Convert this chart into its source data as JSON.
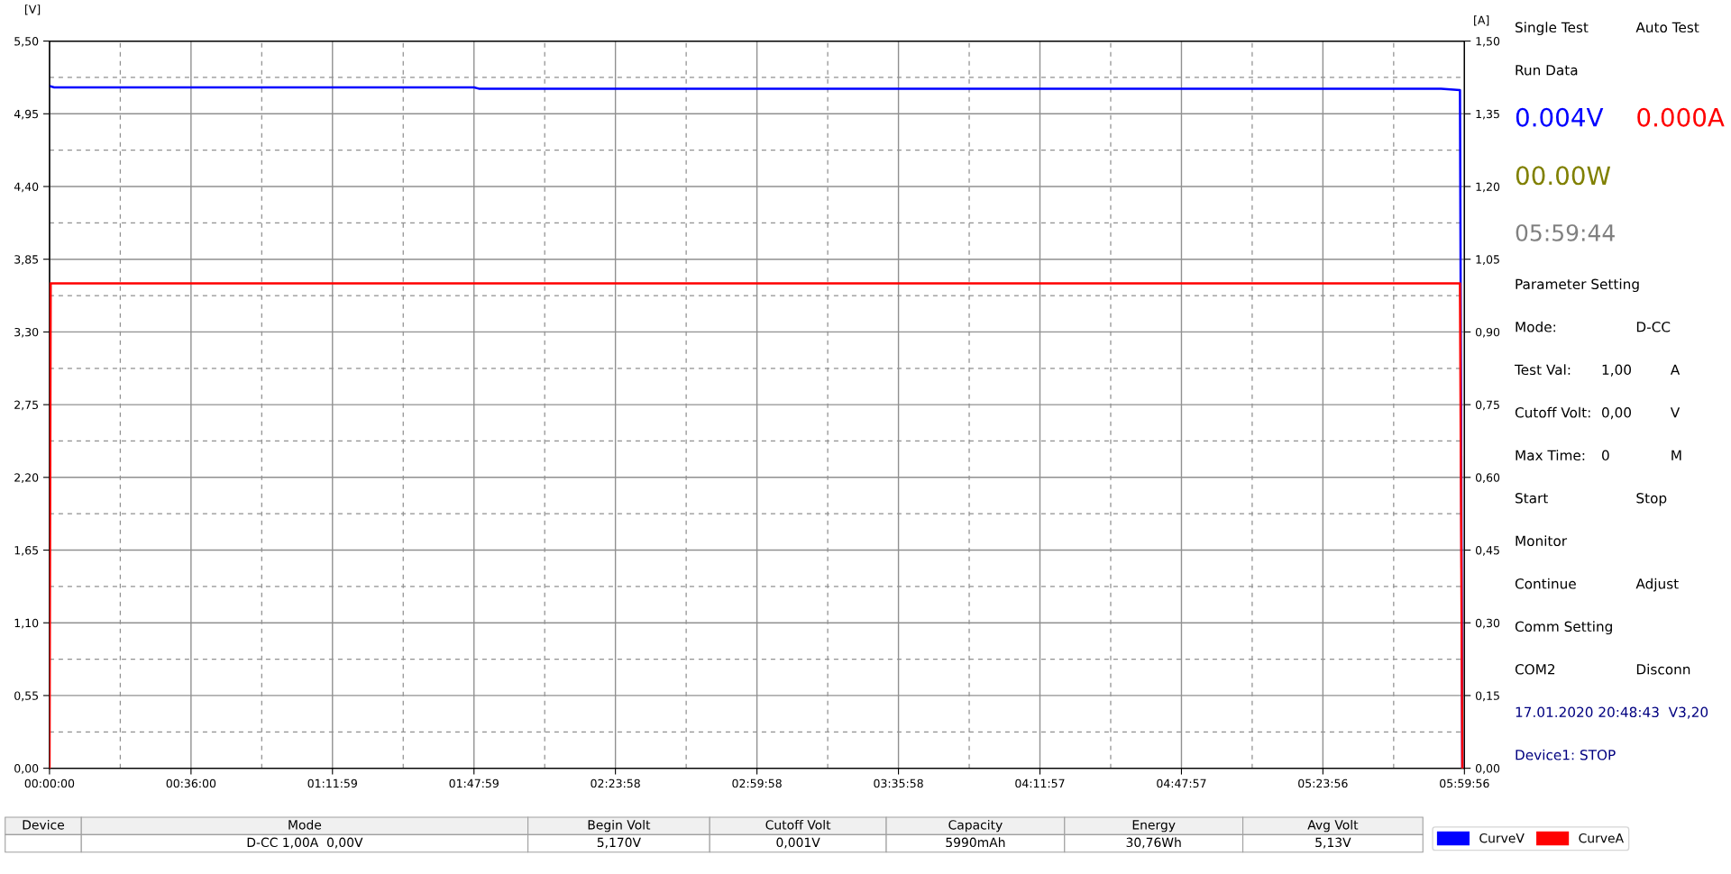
{
  "chart_data": {
    "type": "line",
    "ylabel": "[V]",
    "y2label": "[A]",
    "x": [
      0,
      0.02,
      0.5,
      1.0,
      1.5,
      1.8,
      1.82,
      2.5,
      3.5,
      4.5,
      5.3,
      5.5,
      5.9,
      5.98,
      5.99
    ],
    "series": [
      {
        "name": "CurveV",
        "color": "#0000ff",
        "values": [
          5.16,
          5.15,
          5.15,
          5.15,
          5.15,
          5.15,
          5.14,
          5.14,
          5.14,
          5.14,
          5.14,
          5.14,
          5.14,
          5.13,
          0.0
        ]
      },
      {
        "name": "CurveA",
        "color": "#ff0000",
        "axis": "y2",
        "x": [
          0,
          0.005,
          1.0,
          2.0,
          3.0,
          4.0,
          5.0,
          5.98,
          5.99
        ],
        "values": [
          0.0,
          1.0,
          1.0,
          1.0,
          1.0,
          1.0,
          1.0,
          1.0,
          0.0
        ]
      }
    ],
    "xlim": [
      0,
      5.9989
    ],
    "xticks": [
      {
        "value": 0,
        "label": "00:00:00"
      },
      {
        "value": 0.6,
        "label": "00:36:00"
      },
      {
        "value": 1.1997,
        "label": "01:11:59"
      },
      {
        "value": 1.7997,
        "label": "01:47:59"
      },
      {
        "value": 2.3994,
        "label": "02:23:58"
      },
      {
        "value": 2.9994,
        "label": "02:59:58"
      },
      {
        "value": 3.5994,
        "label": "03:35:58"
      },
      {
        "value": 4.1992,
        "label": "04:11:57"
      },
      {
        "value": 4.7992,
        "label": "04:47:57"
      },
      {
        "value": 5.3989,
        "label": "05:23:56"
      },
      {
        "value": 5.9989,
        "label": "05:59:56"
      }
    ],
    "ylim": [
      0,
      5.5
    ],
    "yticks": [
      {
        "value": 0,
        "label": "0,00"
      },
      {
        "value": 0.55,
        "label": "0,55"
      },
      {
        "value": 1.1,
        "label": "1,10"
      },
      {
        "value": 1.65,
        "label": "1,65"
      },
      {
        "value": 2.2,
        "label": "2,20"
      },
      {
        "value": 2.75,
        "label": "2,75"
      },
      {
        "value": 3.3,
        "label": "3,30"
      },
      {
        "value": 3.85,
        "label": "3,85"
      },
      {
        "value": 4.4,
        "label": "4,40"
      },
      {
        "value": 4.95,
        "label": "4,95"
      },
      {
        "value": 5.5,
        "label": "5,50"
      }
    ],
    "y2lim": [
      0,
      1.5
    ],
    "y2ticks": [
      {
        "value": 0,
        "label": "0,00"
      },
      {
        "value": 0.15,
        "label": "0,15"
      },
      {
        "value": 0.3,
        "label": "0,30"
      },
      {
        "value": 0.45,
        "label": "0,45"
      },
      {
        "value": 0.6,
        "label": "0,60"
      },
      {
        "value": 0.75,
        "label": "0,75"
      },
      {
        "value": 0.9,
        "label": "0,90"
      },
      {
        "value": 1.05,
        "label": "1,05"
      },
      {
        "value": 1.2,
        "label": "1,20"
      },
      {
        "value": 1.35,
        "label": "1,35"
      },
      {
        "value": 1.5,
        "label": "1,50"
      }
    ],
    "grid": true,
    "legend": "bottom right",
    "marker": "none",
    "line_style": "solid",
    "annotations": [
      "Device",
      "Mode",
      "Begin Volt",
      "Cutoff Volt",
      "Capacity",
      "Energy",
      "Avg Volt",
      "D-CC 1,00A  0,00V",
      "5,170V",
      "0,001V",
      "5990mAh",
      "30,76Wh",
      "5,13V",
      "Single Test",
      "Auto Test",
      "Run Data",
      "0.004V",
      "0.000A",
      "00.00W",
      "05:59:44",
      "Parameter Setting",
      "Mode:",
      "D-CC",
      "Test Val:",
      "1,00",
      "A",
      "Cutoff Volt:",
      "0,00",
      "V",
      "Max Time:",
      "0",
      "M",
      "Start",
      "Stop",
      "Monitor",
      "Continue",
      "Adjust",
      "Comm Setting",
      "COM2",
      "Disconn",
      "17.01.2020 20:48:43  V3,20",
      "Device1: STOP"
    ]
  }
}
